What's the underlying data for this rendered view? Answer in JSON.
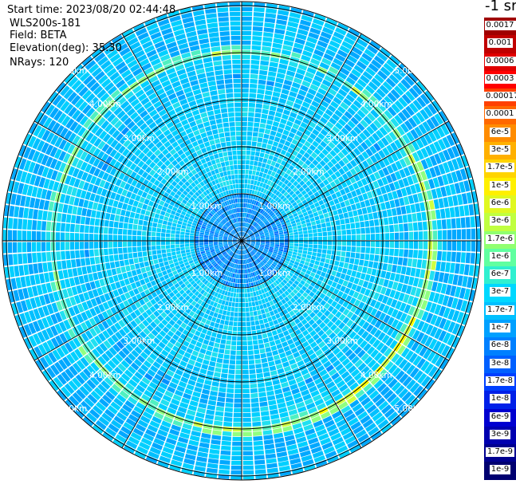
{
  "header": {
    "start_time": "Start time: 2023/08/20 02:44:48",
    "instrument": "WLS200s-181",
    "field": "Field: BETA",
    "elevation": "Elevation(deg): 35.30",
    "nrays": "NRays: 120"
  },
  "colorbar": {
    "unit": "-1 sr",
    "labels": [
      "0.0017",
      "0.001",
      "0.0006",
      "0.0003",
      "0.00017",
      "0.0001",
      "6e-5",
      "3e-5",
      "1.7e-5",
      "1e-5",
      "6e-6",
      "3e-6",
      "1.7e-6",
      "1e-6",
      "6e-7",
      "3e-7",
      "1.7e-7",
      "1e-7",
      "6e-8",
      "3e-8",
      "1.7e-8",
      "1e-8",
      "6e-9",
      "3e-9",
      "1.7e-9",
      "1e-9"
    ],
    "colors": [
      "#a00000",
      "#c00000",
      "#e00000",
      "#ff0000",
      "#ff4000",
      "#ff6800",
      "#ff8c00",
      "#ffb000",
      "#ffd400",
      "#fff000",
      "#e0f820",
      "#c0ff40",
      "#90ff70",
      "#60ffa0",
      "#30f0d0",
      "#00d8ff",
      "#00c0ff",
      "#00a0ff",
      "#0080ff",
      "#0060ff",
      "#0040ff",
      "#0020e8",
      "#0000d0",
      "#0000b0",
      "#000090",
      "#000070"
    ]
  },
  "chart_data": {
    "type": "polar-ppi",
    "field": "BETA",
    "nrays": 120,
    "elevation_deg": 35.3,
    "range_rings_km": [
      1.0,
      2.0,
      3.0,
      4.0,
      5.0
    ],
    "ring_labels": [
      "1.00km",
      "2.00km",
      "3.00km",
      "4.00km",
      "5.00km"
    ],
    "spokes_deg": [
      0,
      30,
      60,
      90,
      120,
      150,
      180,
      210,
      240,
      270,
      300,
      330
    ],
    "enhanced_band_km": [
      4.0,
      4.1
    ],
    "typical_beta": "1e-7 to 6e-7"
  }
}
